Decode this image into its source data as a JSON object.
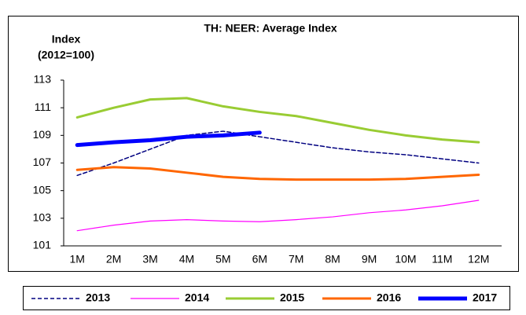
{
  "chart_data": {
    "type": "line",
    "title": "TH: NEER: Average Index",
    "y_label_lines": [
      "Index",
      "(2012=100)"
    ],
    "categories": [
      "1M",
      "2M",
      "3M",
      "4M",
      "5M",
      "6M",
      "7M",
      "8M",
      "9M",
      "10M",
      "11M",
      "12M"
    ],
    "ylim": [
      101,
      113
    ],
    "yticks": [
      101,
      103,
      105,
      107,
      109,
      111,
      113
    ],
    "grid": false,
    "legend": "bottom",
    "series": [
      {
        "name": "2013",
        "color": "#000080",
        "dashed": true,
        "values": [
          106.1,
          107.0,
          108.0,
          109.0,
          109.3,
          108.9,
          108.5,
          108.1,
          107.8,
          107.6,
          107.3,
          107.0
        ]
      },
      {
        "name": "2014",
        "color": "#ff00ff",
        "values": [
          102.1,
          102.5,
          102.8,
          102.9,
          102.8,
          102.75,
          102.9,
          103.1,
          103.4,
          103.6,
          103.9,
          104.3
        ]
      },
      {
        "name": "2015",
        "color": "#99cc33",
        "values": [
          110.3,
          111.0,
          111.6,
          111.7,
          111.1,
          110.7,
          110.4,
          109.9,
          109.4,
          109.0,
          108.7,
          108.5
        ]
      },
      {
        "name": "2016",
        "color": "#ff6600",
        "values": [
          106.5,
          106.7,
          106.6,
          106.3,
          106.0,
          105.85,
          105.8,
          105.8,
          105.8,
          105.85,
          106.0,
          106.15
        ]
      },
      {
        "name": "2017",
        "color": "#0000ff",
        "values": [
          108.3,
          108.5,
          108.65,
          108.9,
          109.0,
          109.2,
          null,
          null,
          null,
          null,
          null,
          null
        ]
      }
    ]
  }
}
